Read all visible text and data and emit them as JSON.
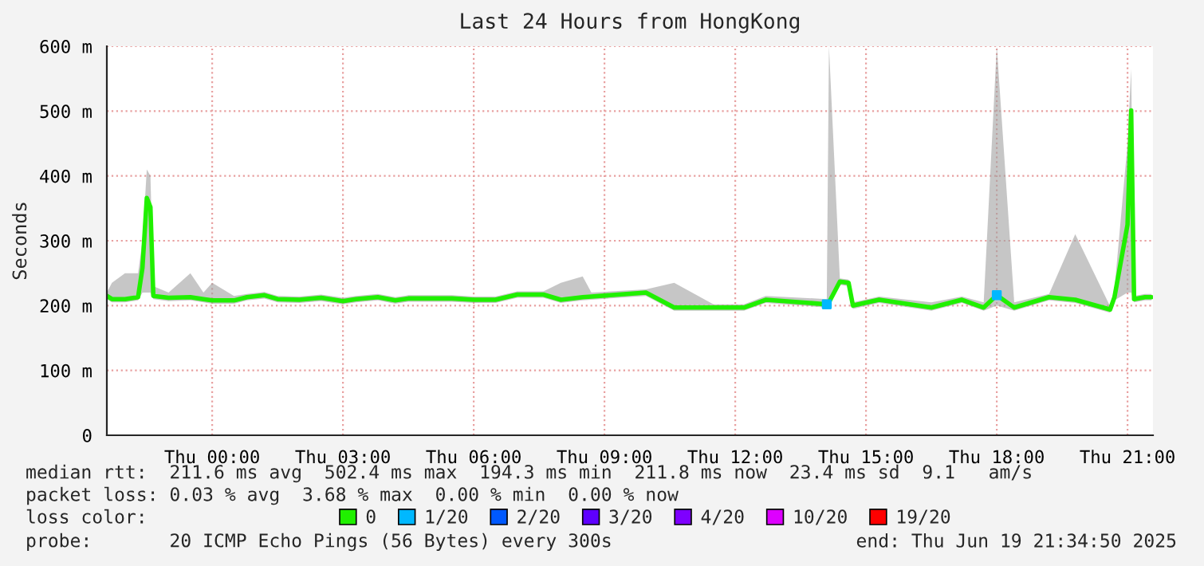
{
  "chart_data": {
    "type": "line",
    "title": "Last 24 Hours from HongKong",
    "ylabel": "Seconds",
    "legend_title": "loss color:",
    "xlim": [
      "2025-06-18T21:35",
      "2025-06-19T21:35"
    ],
    "xticks": [
      {
        "value": "2025-06-19T00:00",
        "label": "Thu 00:00"
      },
      {
        "value": "2025-06-19T03:00",
        "label": "Thu 03:00"
      },
      {
        "value": "2025-06-19T06:00",
        "label": "Thu 06:00"
      },
      {
        "value": "2025-06-19T09:00",
        "label": "Thu 09:00"
      },
      {
        "value": "2025-06-19T12:00",
        "label": "Thu 12:00"
      },
      {
        "value": "2025-06-19T15:00",
        "label": "Thu 15:00"
      },
      {
        "value": "2025-06-19T18:00",
        "label": "Thu 18:00"
      },
      {
        "value": "2025-06-19T21:00",
        "label": "Thu 21:00"
      }
    ],
    "ylim": [
      0,
      600
    ],
    "yticks": [
      0,
      {
        "value": 100,
        "label": "100 m"
      },
      {
        "value": 200,
        "label": "200 m"
      },
      {
        "value": 300,
        "label": "300 m"
      },
      {
        "value": 400,
        "label": "400 m"
      },
      {
        "value": 500,
        "label": "500 m"
      },
      {
        "value": 600,
        "label": "600 m"
      }
    ],
    "grid": true,
    "legend": "bottom",
    "line_style": "solid",
    "series": [
      {
        "name": "0",
        "color": "#20f000",
        "x": [
          "2025-06-18T21:35",
          "2025-06-18T21:42",
          "2025-06-18T22:00",
          "2025-06-18T22:18",
          "2025-06-18T22:24",
          "2025-06-18T22:30",
          "2025-06-18T22:35",
          "2025-06-18T22:39",
          "2025-06-18T23:00",
          "2025-06-18T23:30",
          "2025-06-18T23:48",
          "2025-06-19T00:00",
          "2025-06-19T00:30",
          "2025-06-19T00:48",
          "2025-06-19T01:12",
          "2025-06-19T01:30",
          "2025-06-19T02:00",
          "2025-06-19T02:30",
          "2025-06-19T03:00",
          "2025-06-19T03:18",
          "2025-06-19T03:48",
          "2025-06-19T04:12",
          "2025-06-19T04:30",
          "2025-06-19T05:30",
          "2025-06-19T06:00",
          "2025-06-19T06:30",
          "2025-06-19T07:00",
          "2025-06-19T07:36",
          "2025-06-19T08:00",
          "2025-06-19T08:30",
          "2025-06-19T08:42",
          "2025-06-19T09:57",
          "2025-06-19T10:36",
          "2025-06-19T11:30",
          "2025-06-19T12:12",
          "2025-06-19T12:42",
          "2025-06-19T14:06",
          "2025-06-19T14:09",
          "2025-06-19T14:24",
          "2025-06-19T14:36",
          "2025-06-19T14:42",
          "2025-06-19T15:18",
          "2025-06-19T16:30",
          "2025-06-19T17:12",
          "2025-06-19T17:42",
          "2025-06-19T18:00",
          "2025-06-19T18:24",
          "2025-06-19T19:12",
          "2025-06-19T19:48",
          "2025-06-19T20:36",
          "2025-06-19T20:42",
          "2025-06-19T21:00",
          "2025-06-19T21:05",
          "2025-06-19T21:09",
          "2025-06-19T21:24",
          "2025-06-19T21:33"
        ],
        "values": [
          215,
          210,
          210,
          213,
          258,
          366,
          352,
          215,
          212,
          213,
          210,
          208,
          208,
          213,
          216,
          210,
          209,
          212,
          207,
          210,
          213,
          208,
          211,
          211,
          209,
          209,
          217,
          217,
          209,
          213,
          214,
          220,
          197,
          197,
          197,
          209,
          202,
          205,
          237,
          235,
          200,
          209,
          197,
          209,
          197,
          216,
          197,
          213,
          209,
          194,
          213,
          325,
          501,
          210,
          213,
          213
        ],
        "lower": [
          210,
          205,
          205,
          208,
          220,
          220,
          220,
          210,
          207,
          208,
          205,
          203,
          203,
          208,
          211,
          205,
          204,
          207,
          202,
          205,
          208,
          203,
          206,
          206,
          204,
          204,
          212,
          212,
          204,
          208,
          209,
          215,
          192,
          192,
          192,
          204,
          197,
          200,
          232,
          230,
          195,
          204,
          192,
          204,
          192,
          200,
          192,
          208,
          204,
          189,
          208,
          220,
          220,
          205,
          208,
          208
        ],
        "upper": [
          220,
          235,
          250,
          250,
          300,
          410,
          400,
          230,
          220,
          250,
          220,
          235,
          215,
          218,
          221,
          215,
          214,
          217,
          212,
          215,
          218,
          213,
          216,
          216,
          214,
          214,
          222,
          222,
          235,
          245,
          220,
          225,
          235,
          202,
          202,
          215,
          210,
          600,
          242,
          240,
          205,
          214,
          205,
          214,
          205,
          600,
          205,
          218,
          310,
          199,
          225,
          450,
          565,
          215,
          218,
          218
        ]
      },
      {
        "name": "1/20",
        "color": "#00b8ff",
        "type": "scatter",
        "marker": "square",
        "x": [
          "2025-06-19T14:06",
          "2025-06-19T18:00"
        ],
        "values": [
          202,
          216
        ]
      },
      {
        "name": "2/20",
        "color": "#0059ff",
        "type": "scatter"
      },
      {
        "name": "3/20",
        "color": "#5e00ff",
        "type": "scatter"
      },
      {
        "name": "4/20",
        "color": "#7e00ff",
        "type": "scatter"
      },
      {
        "name": "10/20",
        "color": "#dd00ff",
        "type": "scatter"
      },
      {
        "name": "19/20",
        "color": "#ff0000",
        "type": "scatter"
      }
    ],
    "annotations": [
      "median rtt:  211.6 ms avg  502.4 ms max  194.3 ms min  211.8 ms now  23.4 ms sd  9.1   am/s",
      "packet loss: 0.03 % avg  3.68 % max  0.00 % min  0.00 % now",
      "probe:       20 ICMP Echo Pings (56 Bytes) every 300s",
      "end: Thu Jun 19 21:34:50 2025"
    ]
  }
}
